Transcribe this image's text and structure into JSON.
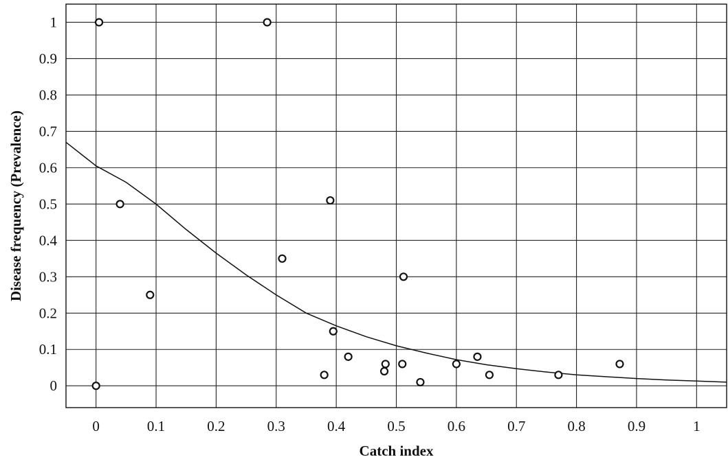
{
  "chart_data": {
    "type": "scatter",
    "title": "",
    "xlabel": "Catch index",
    "ylabel": "Disease frequency (Prevalence)",
    "xlim": [
      -0.05,
      1.05
    ],
    "ylim": [
      -0.06,
      1.05
    ],
    "x_ticks": [
      0,
      0.1,
      0.2,
      0.3,
      0.4,
      0.5,
      0.6,
      0.7,
      0.8,
      0.9,
      1
    ],
    "x_tick_labels": [
      "0",
      "0.1",
      "0.2",
      "0.3",
      "0.4",
      "0.5",
      "0.6",
      "0.7",
      "0.8",
      "0.9",
      "1"
    ],
    "y_ticks": [
      0,
      0.1,
      0.2,
      0.3,
      0.4,
      0.5,
      0.6,
      0.7,
      0.8,
      0.9,
      1
    ],
    "y_tick_labels": [
      "0",
      "0.1",
      "0.2",
      "0.3",
      "0.4",
      "0.5",
      "0.6",
      "0.7",
      "0.8",
      "0.9",
      "1"
    ],
    "grid": true,
    "points": {
      "x": [
        0.005,
        0.285,
        0.04,
        0.39,
        0.31,
        0.09,
        0.512,
        0.395,
        0.42,
        0.38,
        0.482,
        0.48,
        0.51,
        0.54,
        0.6,
        0.635,
        0.655,
        0.77,
        0.872,
        0.0
      ],
      "y": [
        1.0,
        1.0,
        0.5,
        0.51,
        0.35,
        0.25,
        0.3,
        0.15,
        0.08,
        0.03,
        0.06,
        0.04,
        0.06,
        0.01,
        0.06,
        0.08,
        0.03,
        0.03,
        0.06,
        0.0
      ]
    },
    "fitted_curve": {
      "x": [
        -0.05,
        0.0,
        0.05,
        0.1,
        0.15,
        0.2,
        0.25,
        0.3,
        0.35,
        0.4,
        0.45,
        0.5,
        0.55,
        0.6,
        0.65,
        0.7,
        0.75,
        0.8,
        0.85,
        0.9,
        0.95,
        1.0,
        1.05
      ],
      "y": [
        0.67,
        0.605,
        0.56,
        0.5,
        0.43,
        0.365,
        0.305,
        0.25,
        0.2,
        0.165,
        0.135,
        0.11,
        0.09,
        0.072,
        0.058,
        0.047,
        0.038,
        0.03,
        0.025,
        0.02,
        0.016,
        0.013,
        0.01
      ]
    }
  }
}
